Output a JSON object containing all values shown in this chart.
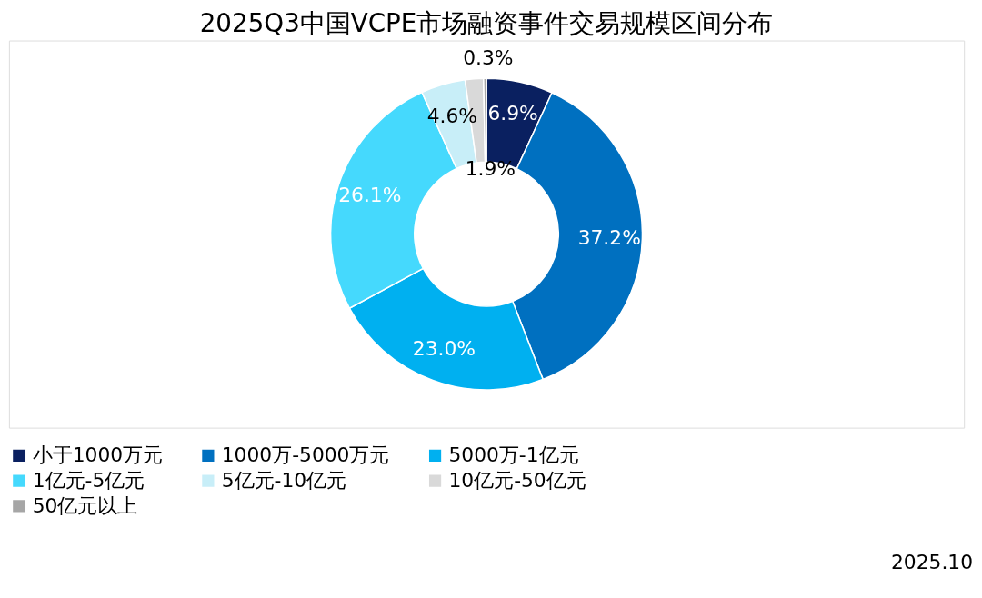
{
  "chart_data": {
    "type": "donut",
    "title": "2025Q3中国VCPE市场融资事件交易规模区间分布",
    "categories": [
      "小于1000万元",
      "1000万-5000万元",
      "5000万-1亿元",
      "1亿元-5亿元",
      "5亿元-10亿元",
      "10亿元-50亿元",
      "50亿元以上"
    ],
    "values": [
      6.9,
      37.2,
      23.0,
      26.1,
      4.6,
      1.9,
      0.3
    ],
    "colors": [
      "#0a2060",
      "#0070c0",
      "#00b0f0",
      "#45d9fd",
      "#c8eef8",
      "#d9d9d9",
      "#a6a6a6"
    ],
    "value_labels": [
      "6.9%",
      "37.2%",
      "23.0%",
      "26.1%",
      "4.6%",
      "1.9%",
      "0.3%"
    ],
    "legend": "bottom",
    "annotations": [
      "2025.10"
    ]
  }
}
